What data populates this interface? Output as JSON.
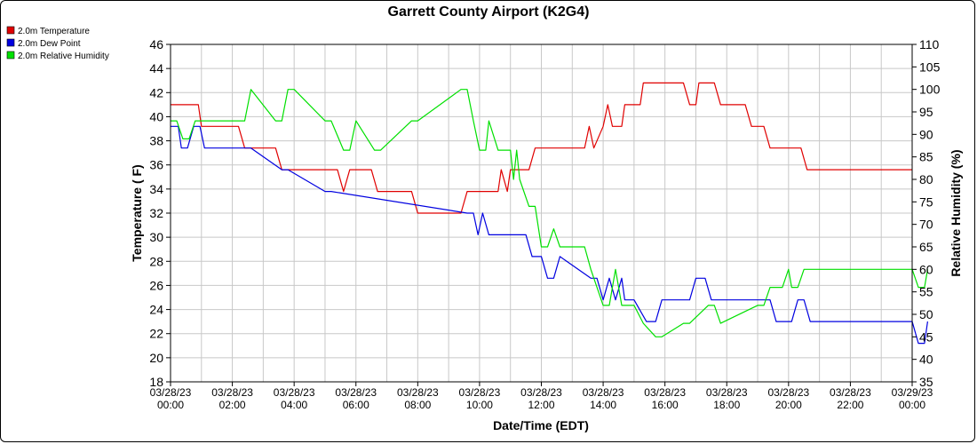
{
  "chart_data": {
    "type": "line",
    "title": "Garrett County Airport (K2G4)",
    "xlabel": "Date/Time (EDT)",
    "ylabel_left": "Temperature ( F)",
    "ylabel_right": "Relative Humidity (%)",
    "x_ticks": [
      [
        "03/28/23",
        "00:00"
      ],
      [
        "03/28/23",
        "02:00"
      ],
      [
        "03/28/23",
        "04:00"
      ],
      [
        "03/28/23",
        "06:00"
      ],
      [
        "03/28/23",
        "08:00"
      ],
      [
        "03/28/23",
        "10:00"
      ],
      [
        "03/28/23",
        "12:00"
      ],
      [
        "03/28/23",
        "14:00"
      ],
      [
        "03/28/23",
        "16:00"
      ],
      [
        "03/28/23",
        "18:00"
      ],
      [
        "03/28/23",
        "20:00"
      ],
      [
        "03/28/23",
        "22:00"
      ],
      [
        "03/29/23",
        "00:00"
      ]
    ],
    "x_range_hours": [
      0,
      24
    ],
    "y_left_range": [
      18,
      46
    ],
    "y_left_ticks": [
      18,
      20,
      22,
      24,
      26,
      28,
      30,
      32,
      34,
      36,
      38,
      40,
      42,
      44,
      46
    ],
    "y_right_range": [
      35,
      110
    ],
    "y_right_ticks": [
      35,
      40,
      45,
      50,
      55,
      60,
      65,
      70,
      75,
      80,
      85,
      90,
      95,
      100,
      105,
      110
    ],
    "grid": true,
    "legend_position": "top-left",
    "series": [
      {
        "name": "2.0m Temperature",
        "color": "#e00000",
        "axis": "left",
        "x": [
          0,
          0.9,
          1.0,
          2.2,
          2.4,
          3.4,
          3.6,
          5.4,
          5.6,
          5.8,
          6.5,
          6.7,
          7.8,
          8.0,
          9.4,
          9.6,
          10.6,
          10.7,
          10.9,
          11.0,
          11.6,
          11.8,
          13.4,
          13.55,
          13.7,
          14.0,
          14.15,
          14.3,
          14.6,
          14.7,
          15.2,
          15.3,
          16.6,
          16.8,
          17.0,
          17.1,
          17.6,
          17.8,
          18.6,
          18.8,
          19.2,
          19.4,
          20.4,
          20.6,
          24.0
        ],
        "values": [
          41.0,
          41.0,
          39.2,
          39.2,
          37.4,
          37.4,
          35.6,
          35.6,
          33.8,
          35.6,
          35.6,
          33.8,
          33.8,
          32.0,
          32.0,
          33.8,
          33.8,
          35.6,
          33.8,
          35.6,
          35.6,
          37.4,
          37.4,
          39.2,
          37.4,
          39.2,
          41.0,
          39.2,
          39.2,
          41.0,
          41.0,
          42.8,
          42.8,
          41.0,
          41.0,
          42.8,
          42.8,
          41.0,
          41.0,
          39.2,
          39.2,
          37.4,
          37.4,
          35.6,
          35.6
        ]
      },
      {
        "name": "2.0m Dew Point",
        "color": "#0000e0",
        "axis": "left",
        "x": [
          0,
          0.25,
          0.35,
          0.55,
          0.75,
          0.95,
          1.1,
          2.6,
          3.6,
          3.8,
          5.0,
          5.2,
          9.6,
          9.8,
          9.95,
          10.1,
          10.3,
          11.5,
          11.7,
          12.0,
          12.2,
          12.4,
          12.6,
          13.6,
          13.8,
          14.0,
          14.2,
          14.4,
          14.6,
          14.7,
          15.0,
          15.4,
          15.7,
          15.9,
          16.8,
          17.0,
          17.3,
          17.5,
          19.4,
          19.6,
          20.1,
          20.3,
          20.5,
          20.7,
          24.0,
          24.2,
          24.4,
          24.5
        ],
        "values": [
          39.2,
          39.2,
          37.4,
          37.4,
          39.2,
          39.2,
          37.4,
          37.4,
          35.6,
          35.6,
          33.8,
          33.8,
          32.0,
          32.0,
          30.2,
          32.0,
          30.2,
          30.2,
          28.4,
          28.4,
          26.6,
          26.6,
          28.4,
          26.6,
          26.6,
          24.8,
          26.6,
          24.8,
          26.6,
          24.8,
          24.8,
          23.0,
          23.0,
          24.8,
          24.8,
          26.6,
          26.6,
          24.8,
          24.8,
          23.0,
          23.0,
          24.8,
          24.8,
          23.0,
          23.0,
          21.2,
          21.2,
          23.0
        ]
      },
      {
        "name": "2.0m Relative Humidity",
        "color": "#00e000",
        "axis": "right",
        "x": [
          0,
          0.2,
          0.4,
          0.6,
          0.8,
          1.0,
          2.2,
          2.4,
          2.6,
          3.4,
          3.6,
          3.8,
          4.0,
          5.0,
          5.2,
          5.6,
          5.8,
          6.0,
          6.6,
          6.8,
          7.8,
          8.0,
          9.4,
          9.6,
          9.8,
          10.0,
          10.2,
          10.3,
          10.6,
          11.0,
          11.1,
          11.2,
          11.3,
          11.6,
          11.8,
          12.0,
          12.2,
          12.4,
          12.6,
          13.4,
          13.6,
          14.0,
          14.2,
          14.4,
          14.6,
          15.0,
          15.3,
          15.7,
          15.9,
          16.6,
          16.8,
          17.4,
          17.6,
          17.8,
          19.0,
          19.2,
          19.4,
          19.8,
          20.0,
          20.1,
          20.3,
          20.5,
          24.0,
          24.2,
          24.4,
          24.5
        ],
        "values": [
          93.0,
          93.0,
          89.0,
          89.0,
          93.0,
          93.0,
          93.0,
          93.0,
          100.0,
          93.0,
          93.0,
          100.0,
          100.0,
          93.0,
          93.0,
          86.5,
          86.5,
          93.0,
          86.5,
          86.5,
          93.0,
          93.0,
          100.0,
          100.0,
          93.0,
          86.5,
          86.5,
          93.0,
          86.5,
          86.5,
          80.0,
          86.5,
          80.0,
          74.0,
          74.0,
          65.0,
          65.0,
          69.0,
          65.0,
          65.0,
          60.0,
          52.0,
          52.0,
          60.0,
          52.0,
          52.0,
          48.0,
          45.0,
          45.0,
          48.0,
          48.0,
          52.0,
          52.0,
          48.0,
          52.0,
          52.0,
          56.0,
          56.0,
          60.0,
          56.0,
          56.0,
          60.0,
          60.0,
          56.0,
          56.0,
          60.0
        ]
      }
    ]
  }
}
